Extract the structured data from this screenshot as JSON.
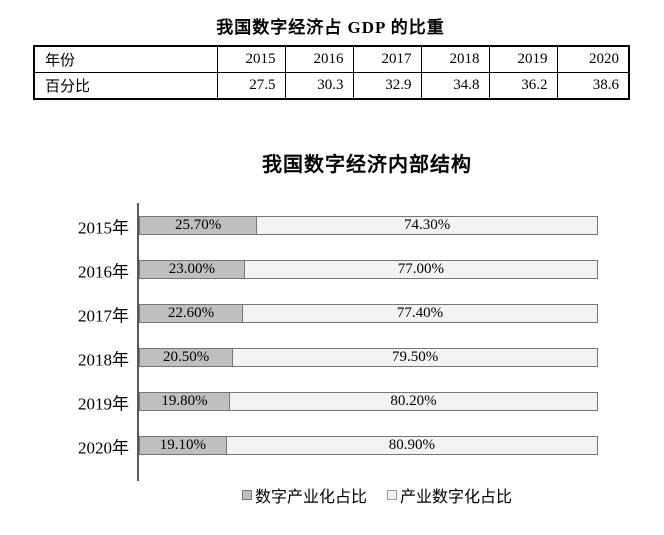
{
  "table_section": {
    "title": "我国数字经济占 GDP 的比重",
    "year_header": "年份",
    "percent_header": "百分比",
    "years": [
      "2015",
      "2016",
      "2017",
      "2018",
      "2019",
      "2020"
    ],
    "percents": [
      "27.5",
      "30.3",
      "32.9",
      "34.8",
      "36.2",
      "38.6"
    ]
  },
  "chart_section": {
    "title": "我国数字经济内部结构",
    "rows": [
      {
        "category": "2015年",
        "seg1_value": 25.7,
        "seg1_label": "25.70%",
        "seg2_value": 74.3,
        "seg2_label": "74.30%"
      },
      {
        "category": "2016年",
        "seg1_value": 23.0,
        "seg1_label": "23.00%",
        "seg2_value": 77.0,
        "seg2_label": "77.00%"
      },
      {
        "category": "2017年",
        "seg1_value": 22.6,
        "seg1_label": "22.60%",
        "seg2_value": 77.4,
        "seg2_label": "77.40%"
      },
      {
        "category": "2018年",
        "seg1_value": 20.5,
        "seg1_label": "20.50%",
        "seg2_value": 79.5,
        "seg2_label": "79.50%"
      },
      {
        "category": "2019年",
        "seg1_value": 19.8,
        "seg1_label": "19.80%",
        "seg2_value": 80.2,
        "seg2_label": "80.20%"
      },
      {
        "category": "2020年",
        "seg1_value": 19.1,
        "seg1_label": "19.10%",
        "seg2_value": 80.9,
        "seg2_label": "80.90%"
      }
    ],
    "legend": [
      {
        "label": "数字产业化占比"
      },
      {
        "label": "产业数字化占比"
      }
    ],
    "colors": {
      "seg1_fill": "#bfbfbf",
      "seg2_fill": "#f2f2f2",
      "seg_border": "#767676",
      "axis": "#595959"
    }
  },
  "chart_data": [
    {
      "type": "table",
      "title": "我国数字经济占 GDP 的比重",
      "columns": [
        "年份",
        "2015",
        "2016",
        "2017",
        "2018",
        "2019",
        "2020"
      ],
      "rows": [
        [
          "百分比",
          27.5,
          30.3,
          32.9,
          34.8,
          36.2,
          38.6
        ]
      ]
    },
    {
      "type": "bar",
      "orientation": "horizontal",
      "stacked": true,
      "title": "我国数字经济内部结构",
      "categories": [
        "2015年",
        "2016年",
        "2017年",
        "2018年",
        "2019年",
        "2020年"
      ],
      "series": [
        {
          "name": "数字产业化占比",
          "color": "#bfbfbf",
          "values": [
            25.7,
            23.0,
            22.6,
            20.5,
            19.8,
            19.1
          ]
        },
        {
          "name": "产业数字化占比",
          "color": "#f2f2f2",
          "values": [
            74.3,
            77.0,
            77.4,
            79.5,
            80.2,
            80.9
          ]
        }
      ],
      "value_labels": true,
      "xlim": [
        0,
        100
      ],
      "grid": false,
      "legend_position": "bottom"
    }
  ]
}
